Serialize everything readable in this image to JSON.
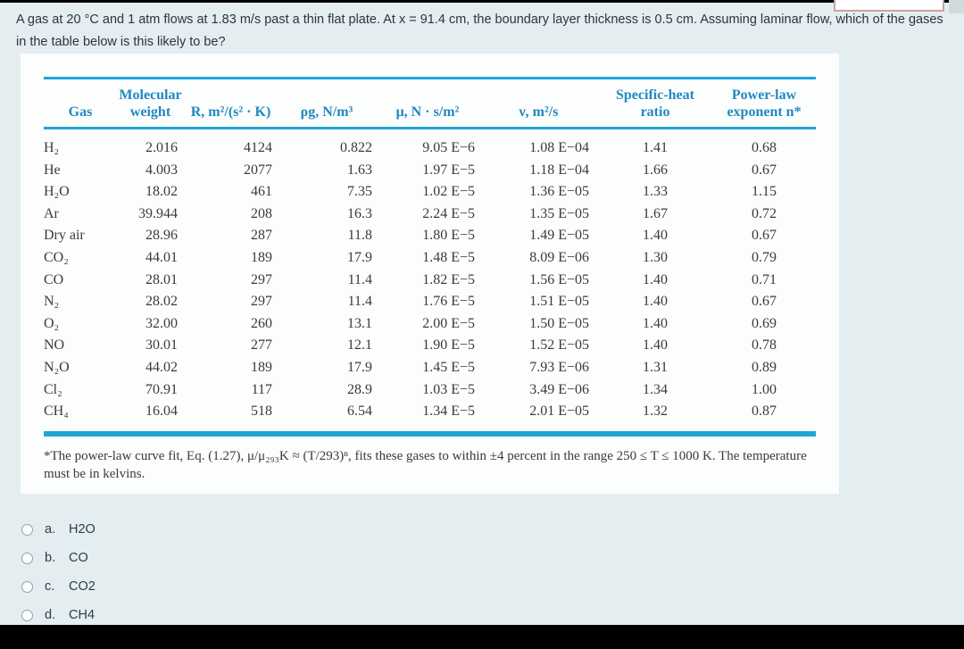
{
  "question": {
    "text": "A gas at 20 °C and 1 atm flows at 1.83 m/s past a thin flat plate. At x = 91.4 cm, the boundary layer thickness is 0.5 cm. Assuming laminar flow, which of the gases in the table below is this likely to be?"
  },
  "table": {
    "headers": [
      {
        "l1": "",
        "l2": "Gas"
      },
      {
        "l1": "Molecular",
        "l2": "weight"
      },
      {
        "l1": "",
        "l2": "R, m²/(s² · K)"
      },
      {
        "l1": "",
        "l2": "ρg, N/m³"
      },
      {
        "l1": "",
        "l2": "μ, N · s/m²"
      },
      {
        "l1": "",
        "l2": "ν, m²/s"
      },
      {
        "l1": "Specific-heat",
        "l2": "ratio"
      },
      {
        "l1": "Power-law",
        "l2": "exponent n*"
      }
    ],
    "rows": [
      [
        "H₂",
        "2.016",
        "4124",
        "0.822",
        "9.05 E−6",
        "1.08 E−04",
        "1.41",
        "0.68"
      ],
      [
        "He",
        "4.003",
        "2077",
        "1.63",
        "1.97 E−5",
        "1.18 E−04",
        "1.66",
        "0.67"
      ],
      [
        "H₂O",
        "18.02",
        "461",
        "7.35",
        "1.02 E−5",
        "1.36 E−05",
        "1.33",
        "1.15"
      ],
      [
        "Ar",
        "39.944",
        "208",
        "16.3",
        "2.24 E−5",
        "1.35 E−05",
        "1.67",
        "0.72"
      ],
      [
        "Dry air",
        "28.96",
        "287",
        "11.8",
        "1.80 E−5",
        "1.49 E−05",
        "1.40",
        "0.67"
      ],
      [
        "CO₂",
        "44.01",
        "189",
        "17.9",
        "1.48 E−5",
        "8.09 E−06",
        "1.30",
        "0.79"
      ],
      [
        "CO",
        "28.01",
        "297",
        "11.4",
        "1.82 E−5",
        "1.56 E−05",
        "1.40",
        "0.71"
      ],
      [
        "N₂",
        "28.02",
        "297",
        "11.4",
        "1.76 E−5",
        "1.51 E−05",
        "1.40",
        "0.67"
      ],
      [
        "O₂",
        "32.00",
        "260",
        "13.1",
        "2.00 E−5",
        "1.50 E−05",
        "1.40",
        "0.69"
      ],
      [
        "NO",
        "30.01",
        "277",
        "12.1",
        "1.90 E−5",
        "1.52 E−05",
        "1.40",
        "0.78"
      ],
      [
        "N₂O",
        "44.02",
        "189",
        "17.9",
        "1.45 E−5",
        "7.93 E−06",
        "1.31",
        "0.89"
      ],
      [
        "Cl₂",
        "70.91",
        "117",
        "28.9",
        "1.03 E−5",
        "3.49 E−06",
        "1.34",
        "1.00"
      ],
      [
        "CH₄",
        "16.04",
        "518",
        "6.54",
        "1.34 E−5",
        "2.01 E−05",
        "1.32",
        "0.87"
      ]
    ],
    "footnote": "*The power-law curve fit, Eq. (1.27), μ/μ₂₉₃K ≈ (T/293)ⁿ, fits these gases to within ±4 percent in the range 250 ≤ T ≤ 1000 K. The temperature must be in kelvins."
  },
  "options": [
    {
      "key": "a.",
      "label": "H2O"
    },
    {
      "key": "b.",
      "label": "CO"
    },
    {
      "key": "c.",
      "label": "CO2"
    },
    {
      "key": "d.",
      "label": "CH4"
    }
  ],
  "colors": {
    "accent_rule": "#22a4d6",
    "header_text": "#2089bf",
    "page_background": "#e4eef0",
    "card_background": "#fcfdfd"
  }
}
